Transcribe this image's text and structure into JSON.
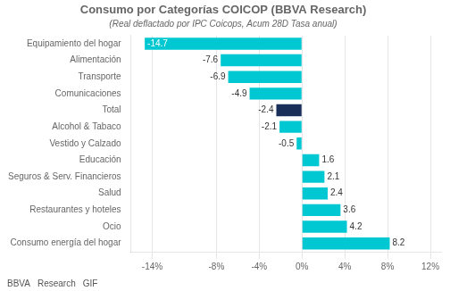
{
  "chart_data": {
    "type": "bar",
    "orientation": "horizontal",
    "title": "Consumo por Categorías COICOP (BBVA Research)",
    "subtitle": "(Real deflactado por IPC Coicops, Acum 28D Tasa anual)",
    "categories": [
      "Equipamiento del hogar",
      "Alimentación",
      "Transporte",
      "Comunicaciones",
      "Total",
      "Alcohol & Tabaco",
      "Vestido y Calzado",
      "Educación",
      "Seguros & Serv. Financieros",
      "Salud",
      "Restaurantes y hoteles",
      "Ocio",
      "Consumo energía del hogar"
    ],
    "values": [
      -14.7,
      -7.6,
      -6.9,
      -4.9,
      -2.4,
      -2.1,
      -0.5,
      1.6,
      2.1,
      2.4,
      3.6,
      4.2,
      8.2
    ],
    "colors": [
      "#00c8d2",
      "#00c8d2",
      "#00c8d2",
      "#00c8d2",
      "#1a2e5a",
      "#00c8d2",
      "#00c8d2",
      "#00c8d2",
      "#00c8d2",
      "#00c8d2",
      "#00c8d2",
      "#00c8d2",
      "#00c8d2"
    ],
    "xlim": [
      -16,
      13
    ],
    "xticks": [
      {
        "value": -14,
        "label": "-14%"
      },
      {
        "value": -8,
        "label": "-8%"
      },
      {
        "value": -4,
        "label": "-4%"
      },
      {
        "value": 0,
        "label": "0%"
      },
      {
        "value": 4,
        "label": "4%"
      },
      {
        "value": 8,
        "label": "8%"
      },
      {
        "value": 12,
        "label": "12%"
      }
    ],
    "grid": true,
    "data_labels": true,
    "annotations": [
      "BBVA",
      "Research",
      "GIF"
    ]
  }
}
